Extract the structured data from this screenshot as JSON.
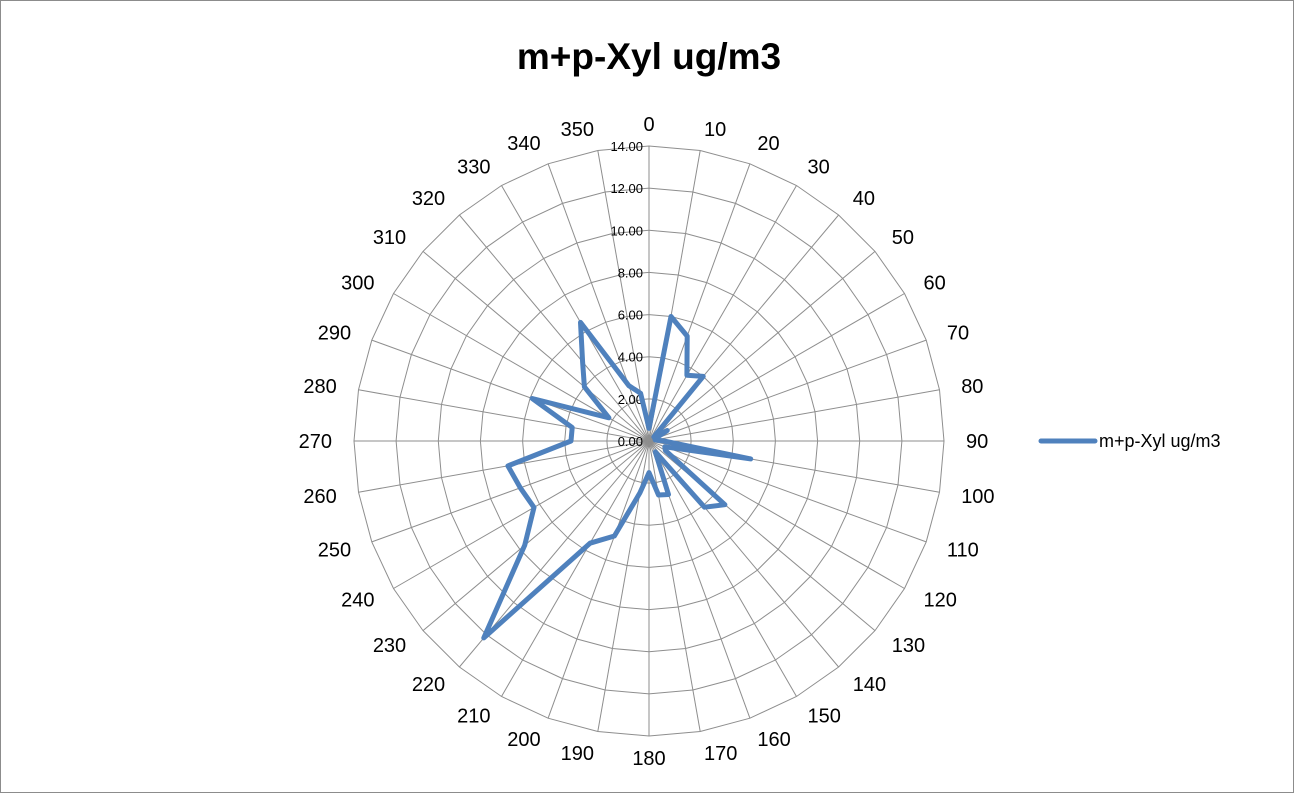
{
  "chart_data": {
    "type": "radar",
    "title": "m+p-Xyl ug/m3",
    "categories": [
      "0",
      "10",
      "20",
      "30",
      "40",
      "50",
      "60",
      "70",
      "80",
      "90",
      "100",
      "110",
      "120",
      "130",
      "140",
      "150",
      "160",
      "170",
      "180",
      "190",
      "200",
      "210",
      "220",
      "230",
      "240",
      "250",
      "260",
      "270",
      "280",
      "290",
      "300",
      "310",
      "320",
      "330",
      "340",
      "350"
    ],
    "series": [
      {
        "name": "m+p-Xyl ug/m3",
        "color": "#4f81bd",
        "values": [
          0.6,
          6.0,
          5.3,
          3.6,
          4.0,
          0.3,
          1.0,
          0.3,
          0.3,
          0.7,
          4.9,
          0.8,
          0.9,
          4.7,
          4.1,
          0.6,
          2.7,
          2.6,
          1.5,
          2.5,
          4.8,
          5.6,
          12.2,
          7.7,
          6.3,
          6.5,
          6.8,
          3.7,
          3.7,
          5.9,
          2.2,
          4.0,
          4.9,
          6.5,
          2.8,
          2.3
        ]
      }
    ],
    "value_axis": {
      "min": 0,
      "max": 14,
      "step": 2,
      "tick_labels": [
        "0.00",
        "2.00",
        "4.00",
        "6.00",
        "8.00",
        "10.00",
        "12.00",
        "14.00"
      ]
    },
    "grid": true,
    "legend": "right"
  }
}
